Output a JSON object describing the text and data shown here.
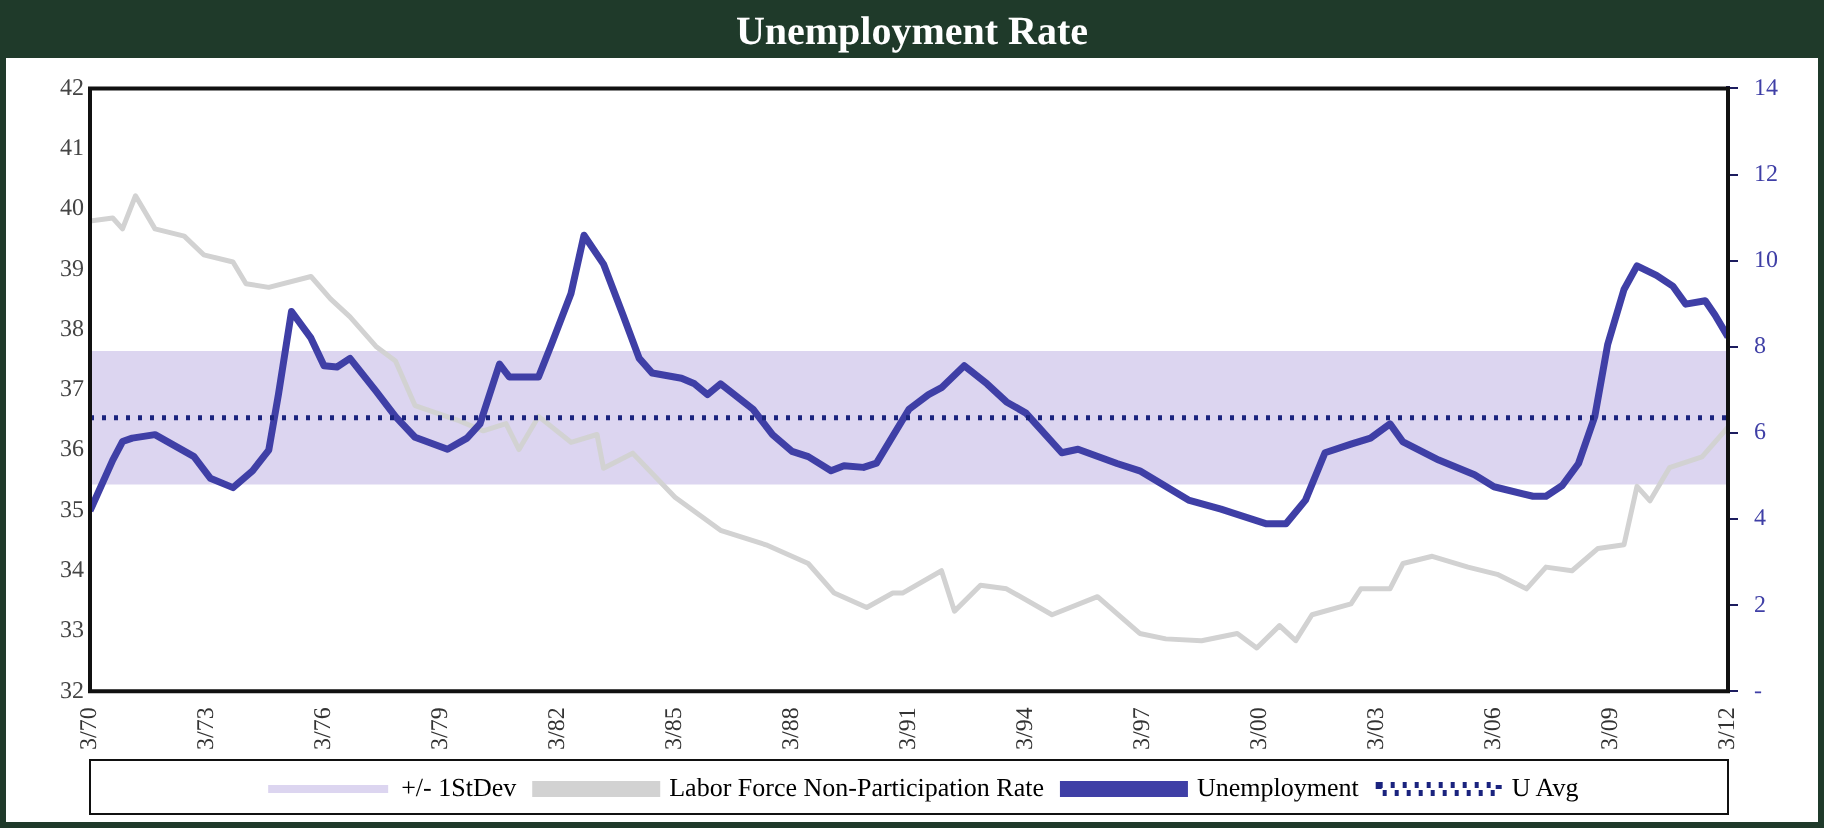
{
  "chart_data": {
    "type": "line",
    "title": "Unemployment Rate",
    "marker": "none",
    "line_style": "solid",
    "grid": false,
    "legend": "bottom",
    "xlim": [
      "1970-03",
      "2012-03"
    ],
    "xticks": [
      {
        "value": "1970-03",
        "label": "3/70"
      },
      {
        "value": "1973-03",
        "label": "3/73"
      },
      {
        "value": "1976-03",
        "label": "3/76"
      },
      {
        "value": "1979-03",
        "label": "3/79"
      },
      {
        "value": "1982-03",
        "label": "3/82"
      },
      {
        "value": "1985-03",
        "label": "3/85"
      },
      {
        "value": "1988-03",
        "label": "3/88"
      },
      {
        "value": "1991-03",
        "label": "3/91"
      },
      {
        "value": "1994-03",
        "label": "3/94"
      },
      {
        "value": "1997-03",
        "label": "3/97"
      },
      {
        "value": "2000-03",
        "label": "3/00"
      },
      {
        "value": "2003-03",
        "label": "3/03"
      },
      {
        "value": "2006-03",
        "label": "3/06"
      },
      {
        "value": "2009-03",
        "label": "3/09"
      },
      {
        "value": "2012-03",
        "label": "3/12"
      }
    ],
    "ylim": [
      32,
      42
    ],
    "yticks": [
      32,
      33,
      34,
      35,
      36,
      37,
      38,
      39,
      40,
      41,
      42
    ],
    "y2lim": [
      0,
      14
    ],
    "y2ticks": [
      {
        "value": 0,
        "label": "-"
      },
      2,
      4,
      6,
      8,
      10,
      12,
      14
    ],
    "bands": [
      {
        "axis": "y2",
        "from": 4.8,
        "to": 7.9,
        "label": "+/- 1StDev",
        "color": "#dcd5f0"
      }
    ],
    "series": [
      {
        "name": "Labor Force Non-Participation Rate",
        "color": "#d2d2d2",
        "x": [
          "1970-03",
          "1970-10",
          "1971-01",
          "1971-05",
          "1971-11",
          "1972-08",
          "1973-02",
          "1973-11",
          "1974-03",
          "1974-10",
          "1975-11",
          "1976-05",
          "1976-11",
          "1977-07",
          "1978-01",
          "1978-07",
          "1979-08",
          "1980-04",
          "1980-11",
          "1981-03",
          "1981-09",
          "1982-07",
          "1983-03",
          "1983-05",
          "1984-02",
          "1985-03",
          "1986-05",
          "1987-07",
          "1988-08",
          "1989-04",
          "1990-02",
          "1990-10",
          "1991-01",
          "1992-01",
          "1992-05",
          "1993-01",
          "1993-09",
          "1994-11",
          "1996-01",
          "1997-02",
          "1997-10",
          "1998-09",
          "1999-08",
          "2000-02",
          "2000-09",
          "2001-02",
          "2001-07",
          "2002-07",
          "2002-10",
          "2003-07",
          "2003-11",
          "2004-08",
          "2005-07",
          "2006-04",
          "2007-01",
          "2007-07",
          "2008-03",
          "2008-11",
          "2009-07",
          "2009-11",
          "2010-03",
          "2010-09",
          "2011-07",
          "2012-03"
        ],
        "values": [
          39.8,
          39.85,
          39.67,
          40.22,
          39.67,
          39.55,
          39.24,
          39.12,
          38.76,
          38.7,
          38.88,
          38.51,
          38.21,
          37.72,
          37.48,
          36.74,
          36.5,
          36.32,
          36.44,
          36.01,
          36.56,
          36.13,
          36.26,
          35.7,
          35.95,
          35.22,
          34.67,
          34.43,
          34.12,
          33.63,
          33.39,
          33.63,
          33.63,
          34.0,
          33.33,
          33.76,
          33.7,
          33.27,
          33.57,
          32.96,
          32.87,
          32.84,
          32.96,
          32.72,
          33.09,
          32.84,
          33.27,
          33.45,
          33.7,
          33.7,
          34.12,
          34.24,
          34.06,
          33.94,
          33.7,
          34.06,
          34.0,
          34.37,
          34.43,
          35.4,
          35.16,
          35.71,
          35.89,
          36.38
        ]
      },
      {
        "name": "Unemployment",
        "color": "#3f3fa6",
        "axis": "y2",
        "x": [
          "1970-03",
          "1970-10",
          "1971-01",
          "1971-04",
          "1971-11",
          "1972-11",
          "1973-04",
          "1973-11",
          "1974-05",
          "1974-10",
          "1975-01",
          "1975-05",
          "1975-11",
          "1976-03",
          "1976-07",
          "1976-11",
          "1977-07",
          "1978-01",
          "1978-07",
          "1979-05",
          "1979-11",
          "1980-03",
          "1980-09",
          "1980-12",
          "1981-09",
          "1982-01",
          "1982-07",
          "1982-11",
          "1983-05",
          "1983-11",
          "1984-04",
          "1984-08",
          "1985-05",
          "1985-09",
          "1986-01",
          "1986-05",
          "1987-03",
          "1987-09",
          "1988-03",
          "1988-08",
          "1989-03",
          "1989-07",
          "1990-01",
          "1990-05",
          "1991-03",
          "1991-09",
          "1992-01",
          "1992-08",
          "1993-03",
          "1993-09",
          "1994-03",
          "1995-02",
          "1995-07",
          "1996-07",
          "1997-02",
          "1998-05",
          "1999-03",
          "2000-05",
          "2000-11",
          "2001-05",
          "2001-11",
          "2002-07",
          "2003-01",
          "2003-07",
          "2003-11",
          "2004-10",
          "2005-09",
          "2006-03",
          "2007-03",
          "2007-07",
          "2007-12",
          "2008-05",
          "2008-10",
          "2009-02",
          "2009-07",
          "2009-11",
          "2010-05",
          "2010-10",
          "2011-02",
          "2011-08",
          "2011-11",
          "2012-03"
        ],
        "values": [
          4.19,
          5.37,
          5.8,
          5.88,
          5.96,
          5.45,
          4.95,
          4.73,
          5.12,
          5.6,
          6.9,
          8.82,
          8.2,
          7.56,
          7.53,
          7.73,
          6.97,
          6.38,
          5.9,
          5.62,
          5.88,
          6.21,
          7.6,
          7.3,
          7.3,
          8.06,
          9.24,
          10.59,
          9.92,
          8.74,
          7.73,
          7.39,
          7.27,
          7.14,
          6.89,
          7.14,
          6.55,
          5.96,
          5.57,
          5.45,
          5.12,
          5.24,
          5.2,
          5.3,
          6.55,
          6.89,
          7.05,
          7.56,
          7.14,
          6.72,
          6.46,
          5.54,
          5.62,
          5.29,
          5.12,
          4.44,
          4.23,
          3.89,
          3.89,
          4.44,
          5.54,
          5.74,
          5.88,
          6.21,
          5.79,
          5.37,
          5.03,
          4.75,
          4.53,
          4.53,
          4.78,
          5.29,
          6.38,
          8.06,
          9.33,
          9.88,
          9.66,
          9.41,
          8.99,
          9.07,
          8.74,
          8.23
        ]
      }
    ],
    "ref_lines": [
      {
        "axis": "y2",
        "value": 6.35,
        "label": "U Avg",
        "color": "#1a237e",
        "line_style": "dotted"
      }
    ]
  }
}
